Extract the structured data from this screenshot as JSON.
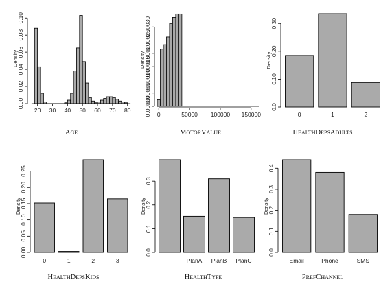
{
  "chart_data": [
    {
      "type": "bar",
      "title": "AGE",
      "title_parts": [
        "A",
        "GE"
      ],
      "ylabel": "Density",
      "x": [
        17,
        19,
        21,
        23,
        25,
        27,
        29,
        31,
        33,
        35,
        37,
        39,
        41,
        43,
        45,
        47,
        49,
        51,
        53,
        55,
        57,
        59,
        61,
        63,
        65,
        67,
        69,
        71,
        73,
        75,
        77,
        79,
        81
      ],
      "values": [
        0.0,
        0.088,
        0.043,
        0.012,
        0.002,
        0.0,
        0.0,
        0.0,
        0.0,
        0.0,
        0.0,
        0.001,
        0.004,
        0.012,
        0.038,
        0.065,
        0.103,
        0.049,
        0.024,
        0.007,
        0.003,
        0.001,
        0.002,
        0.004,
        0.006,
        0.008,
        0.008,
        0.007,
        0.005,
        0.003,
        0.002,
        0.001,
        0.0
      ],
      "xlim": [
        16.5,
        81.5
      ],
      "ylim": [
        0,
        0.105
      ],
      "xticks": [
        20,
        30,
        40,
        50,
        60,
        70,
        80
      ],
      "yticks": [
        0.0,
        0.02,
        0.04,
        0.06,
        0.08,
        0.1
      ],
      "ytick_labels": [
        "0.00",
        "0.02",
        "0.04",
        "0.06",
        "0.08",
        "0.10"
      ],
      "tick_labels": [
        "20",
        "30",
        "40",
        "50",
        "60",
        "70",
        "80"
      ]
    },
    {
      "type": "bar",
      "title": "MOTORVALUE",
      "title_parts": [
        "M",
        "OTOR",
        "V",
        "ALUE"
      ],
      "ylabel": "Density",
      "x": [
        0,
        5000,
        10000,
        15000,
        20000,
        25000,
        30000,
        35000,
        40000,
        45000,
        50000,
        55000,
        60000,
        65000,
        70000,
        75000,
        80000,
        85000,
        90000,
        95000,
        100000,
        105000,
        110000,
        115000,
        120000,
        125000,
        130000,
        135000,
        140000,
        145000,
        150000,
        155000,
        160000
      ],
      "values": [
        2.5e-05,
        0.000216,
        0.000233,
        0.000262,
        0.000313,
        0.000336,
        0.000349,
        0.000349,
        0.0,
        0.0,
        0.0,
        0.0,
        0.0,
        0.0,
        0.0,
        0.0,
        0.0,
        0.0,
        0.0,
        0.0,
        0.0,
        0.0,
        0.0,
        0.0,
        0.0,
        0.0,
        0.0,
        0.0,
        0.0,
        0.0,
        0.0,
        0.0,
        0.0
      ],
      "xlim": [
        -2500,
        162500
      ],
      "ylim": [
        0,
        0.00035
      ],
      "xticks": [
        0,
        50000,
        100000,
        150000
      ],
      "yticks": [
        0.0,
        5e-05,
        0.0001,
        0.00015,
        0.0002,
        0.00025,
        0.0003
      ],
      "ytick_labels": [
        "0.00000",
        "0.00005",
        "0.00010",
        "0.00015",
        "0.00020",
        "0.00025",
        "0.00030"
      ],
      "tick_labels": [
        "0",
        "50000",
        "100000",
        "150000"
      ]
    },
    {
      "type": "bar",
      "title": "HEALTHDEPSADULTS",
      "title_parts": [
        "H",
        "EALTH",
        "D",
        "EPS",
        "A",
        "DULTS"
      ],
      "ylabel": "Density",
      "categories": [
        "0",
        "1",
        "2"
      ],
      "values": [
        0.185,
        0.335,
        0.088
      ],
      "ylim": [
        0,
        0.335
      ],
      "yticks": [
        0.0,
        0.1,
        0.2,
        0.3
      ],
      "ytick_labels": [
        "0.0",
        "0.10",
        "0.20",
        "0.30"
      ]
    },
    {
      "type": "bar",
      "title": "HEALTHDEPSKIDS",
      "title_parts": [
        "H",
        "EALTH",
        "D",
        "EPS",
        "K",
        "IDS"
      ],
      "ylabel": "Density",
      "categories": [
        "0",
        "1",
        "2",
        "3"
      ],
      "values": [
        0.152,
        0.003,
        0.285,
        0.165
      ],
      "ylim": [
        0,
        0.285
      ],
      "yticks": [
        0.0,
        0.05,
        0.1,
        0.15,
        0.2,
        0.25
      ],
      "ytick_labels": [
        "0.00",
        "0.05",
        "0.10",
        "0.15",
        "0.20",
        "0.25"
      ]
    },
    {
      "type": "bar",
      "title": "HEALTHTYPE",
      "title_parts": [
        "H",
        "EALTH",
        "T",
        "YPE"
      ],
      "ylabel": "Density",
      "categories": [
        "",
        "PlanA",
        "PlanB",
        "PlanC"
      ],
      "values": [
        0.39,
        0.152,
        0.31,
        0.147
      ],
      "ylim": [
        0,
        0.39
      ],
      "yticks": [
        0.0,
        0.1,
        0.2,
        0.3
      ],
      "ytick_labels": [
        "0.0",
        "0.1",
        "0.2",
        "0.3"
      ]
    },
    {
      "type": "bar",
      "title": "PREFCHANNEL",
      "title_parts": [
        "P",
        "REF",
        "C",
        "HANNEL"
      ],
      "ylabel": "Density",
      "categories": [
        "Email",
        "Phone",
        "SMS"
      ],
      "values": [
        0.44,
        0.38,
        0.18
      ],
      "ylim": [
        0,
        0.44
      ],
      "yticks": [
        0.0,
        0.1,
        0.2,
        0.3,
        0.4
      ],
      "ytick_labels": [
        "0.0",
        "0.1",
        "0.2",
        "0.3",
        "0.4"
      ]
    }
  ],
  "colors": {
    "bar_fill": "#aaaaaa",
    "bar_stroke": "#000000",
    "axis": "#000000"
  }
}
